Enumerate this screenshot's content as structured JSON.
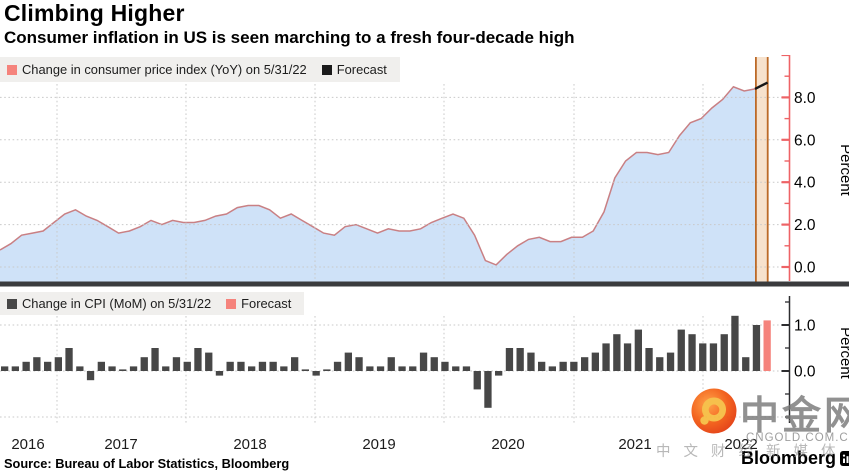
{
  "header": {
    "title": "Climbing Higher",
    "subtitle": "Consumer inflation in US is seen marching to a fresh four-decade high"
  },
  "footer": {
    "source": "Source: Bureau of Labor Statistics, Bloomberg",
    "brand": "Bloomberg"
  },
  "watermark": {
    "site_name": "中金网",
    "site_domain": "CNGOLD.COM.CN",
    "site_tagline": "中文财经新媒体"
  },
  "colors": {
    "area_fill": "#cfe2f8",
    "area_line": "#c98084",
    "forecast_line": "#161616",
    "forecast_band_fill": "#f7e2cd",
    "forecast_band_border": "#bc6a28",
    "yoy_axis": "#ee6366",
    "bar_fill": "#474747",
    "forecast_bar_fill": "#f5837c",
    "legend_bg": "#f0efed",
    "grid": "#c9c9c9",
    "baseline": "#3a3b3d",
    "mom_axis": "#2d2d2f"
  },
  "chart_data": [
    {
      "type": "area",
      "legend": {
        "series": "Change in consumer price index (YoY) on 5/31/22",
        "forecast": "Forecast"
      },
      "ylabel": "Percent",
      "ylim": [
        0,
        10.2
      ],
      "yticks": [
        0,
        2,
        4,
        6,
        8
      ],
      "ytick_labels": [
        "0.0",
        "2.0",
        "4.0",
        "6.0",
        "8.0"
      ],
      "minor_yticks": [
        1,
        3,
        5,
        7,
        9
      ],
      "x_start": "Jul 2016",
      "x_freq": "monthly",
      "x_year_labels": [
        "2016",
        "2017",
        "2018",
        "2019",
        "2020",
        "2021",
        "2022"
      ],
      "grid": "dotted",
      "legend_position": "top-left",
      "values": [
        0.8,
        1.1,
        1.5,
        1.6,
        1.7,
        2.1,
        2.5,
        2.7,
        2.4,
        2.2,
        1.9,
        1.6,
        1.7,
        1.9,
        2.2,
        2.0,
        2.2,
        2.1,
        2.1,
        2.2,
        2.4,
        2.5,
        2.8,
        2.9,
        2.9,
        2.7,
        2.3,
        2.5,
        2.2,
        1.9,
        1.6,
        1.5,
        1.9,
        2.0,
        1.8,
        1.6,
        1.8,
        1.7,
        1.7,
        1.8,
        2.1,
        2.3,
        2.5,
        2.3,
        1.5,
        0.3,
        0.1,
        0.6,
        1.0,
        1.3,
        1.4,
        1.2,
        1.2,
        1.4,
        1.4,
        1.7,
        2.6,
        4.2,
        5.0,
        5.4,
        5.4,
        5.3,
        5.4,
        6.2,
        6.8,
        7.0,
        7.5,
        7.9,
        8.5,
        8.3,
        8.4
      ],
      "forecast_values": [
        8.4,
        8.55,
        8.7
      ]
    },
    {
      "type": "bar",
      "legend": {
        "series": "Change in CPI (MoM) on 5/31/22",
        "forecast": "Forecast"
      },
      "ylabel": "Percent",
      "ylim": [
        -1.3,
        1.7
      ],
      "yticks": [
        1,
        0
      ],
      "ytick_labels": [
        "1.0",
        "0.0"
      ],
      "minor_yticks": [
        1.5,
        0.5,
        -0.5,
        -1
      ],
      "x_start": "Jul 2016",
      "x_freq": "monthly",
      "grid": "dotted",
      "legend_position": "top-left",
      "values": [
        0.1,
        0.1,
        0.2,
        0.3,
        0.2,
        0.3,
        0.5,
        0.1,
        -0.2,
        0.2,
        0.1,
        0.0,
        0.1,
        0.3,
        0.5,
        0.1,
        0.3,
        0.2,
        0.5,
        0.4,
        -0.1,
        0.2,
        0.2,
        0.1,
        0.2,
        0.2,
        0.1,
        0.3,
        0.0,
        -0.1,
        0.0,
        0.2,
        0.4,
        0.3,
        0.1,
        0.1,
        0.3,
        0.1,
        0.1,
        0.4,
        0.3,
        0.2,
        0.1,
        0.1,
        -0.4,
        -0.8,
        -0.1,
        0.5,
        0.5,
        0.4,
        0.2,
        0.1,
        0.2,
        0.2,
        0.3,
        0.4,
        0.6,
        0.8,
        0.6,
        0.9,
        0.5,
        0.3,
        0.4,
        0.9,
        0.8,
        0.6,
        0.6,
        0.8,
        1.2,
        0.3,
        1.0
      ],
      "forecast_values": [
        1.1
      ]
    }
  ]
}
